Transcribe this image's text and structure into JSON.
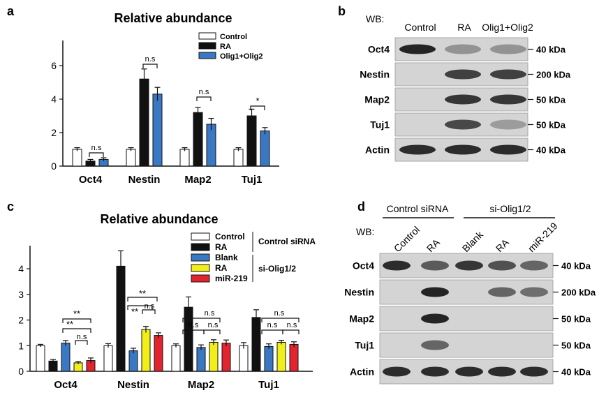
{
  "panels": {
    "a": {
      "letter": "a",
      "title": "Relative abundance",
      "legend": [
        "Control",
        "RA",
        "Olig1+Olig2"
      ],
      "sig": [
        "n.s",
        "n.s",
        "n.s",
        "*"
      ]
    },
    "b": {
      "letter": "b",
      "wb_label": "WB:",
      "lanes": [
        "Control",
        "RA",
        "Olig1+Olig2"
      ],
      "rows": [
        {
          "name": "Oct4",
          "kda": "40 kDa"
        },
        {
          "name": "Nestin",
          "kda": "200 kDa"
        },
        {
          "name": "Map2",
          "kda": "50 kDa"
        },
        {
          "name": "Tuj1",
          "kda": "50 kDa"
        },
        {
          "name": "Actin",
          "kda": "40 kDa"
        }
      ]
    },
    "c": {
      "letter": "c",
      "title": "Relative abundance",
      "legend": [
        "Control",
        "RA",
        "Blank",
        "RA",
        "miR-219"
      ],
      "group_labels": [
        "Control siRNA",
        "si-Olig1/2"
      ],
      "sig": {
        "oct4": [
          "**",
          "**",
          "n.s"
        ],
        "nestin": [
          "**",
          "**",
          "n.s"
        ],
        "map2": [
          "n.s",
          "n.s",
          "n.s"
        ],
        "tuj1": [
          "n.s",
          "n.s",
          "n.s"
        ]
      }
    },
    "d": {
      "letter": "d",
      "wb_label": "WB:",
      "groups": [
        "Control siRNA",
        "si-Olig1/2"
      ],
      "lanes": [
        "Control",
        "RA",
        "Blank",
        "RA",
        "miR-219"
      ],
      "rows": [
        {
          "name": "Oct4",
          "kda": "40 kDa"
        },
        {
          "name": "Nestin",
          "kda": "200 kDa"
        },
        {
          "name": "Map2",
          "kda": "50 kDa"
        },
        {
          "name": "Tuj1",
          "kda": "50 kDa"
        },
        {
          "name": "Actin",
          "kda": "40 kDa"
        }
      ]
    }
  },
  "colors": {
    "control": "#ffffff",
    "ra": "#111111",
    "olig": "#3a78c4",
    "blank": "#3a78c4",
    "ra_si": "#f2ee1a",
    "mir219": "#e3232d"
  },
  "chart_data": [
    {
      "panel": "a",
      "type": "bar",
      "title": "Relative abundance",
      "categories": [
        "Oct4",
        "Nestin",
        "Map2",
        "Tuj1"
      ],
      "ylim": [
        0,
        7.5
      ],
      "yticks": [
        0,
        2,
        4,
        6
      ],
      "legend_position": "top-right",
      "series": [
        {
          "name": "Control",
          "values": [
            1.0,
            1.0,
            1.0,
            1.0
          ],
          "errors": [
            0.1,
            0.1,
            0.1,
            0.1
          ]
        },
        {
          "name": "RA",
          "values": [
            0.3,
            5.2,
            3.2,
            3.0
          ],
          "errors": [
            0.1,
            0.6,
            0.3,
            0.4
          ]
        },
        {
          "name": "Olig1+Olig2",
          "values": [
            0.4,
            4.3,
            2.5,
            2.1
          ],
          "errors": [
            0.1,
            0.4,
            0.35,
            0.2
          ]
        }
      ]
    },
    {
      "panel": "c",
      "type": "bar",
      "title": "Relative abundance",
      "categories": [
        "Oct4",
        "Nestin",
        "Map2",
        "Tuj1"
      ],
      "ylim": [
        0,
        4.9
      ],
      "yticks": [
        0,
        1,
        2,
        3,
        4
      ],
      "legend_position": "top-right",
      "series": [
        {
          "name": "Control",
          "values": [
            1.0,
            1.0,
            1.0,
            1.0
          ],
          "errors": [
            0.05,
            0.08,
            0.07,
            0.12
          ]
        },
        {
          "name": "RA",
          "values": [
            0.4,
            4.1,
            2.5,
            2.1
          ],
          "errors": [
            0.06,
            0.6,
            0.4,
            0.3
          ]
        },
        {
          "name": "Blank",
          "values": [
            1.1,
            0.8,
            0.93,
            0.97
          ],
          "errors": [
            0.1,
            0.1,
            0.1,
            0.1
          ]
        },
        {
          "name": "RA",
          "values": [
            0.33,
            1.63,
            1.13,
            1.13
          ],
          "errors": [
            0.05,
            0.12,
            0.1,
            0.08
          ]
        },
        {
          "name": "miR-219",
          "values": [
            0.42,
            1.4,
            1.1,
            1.05
          ],
          "errors": [
            0.1,
            0.1,
            0.12,
            0.1
          ]
        }
      ]
    }
  ]
}
